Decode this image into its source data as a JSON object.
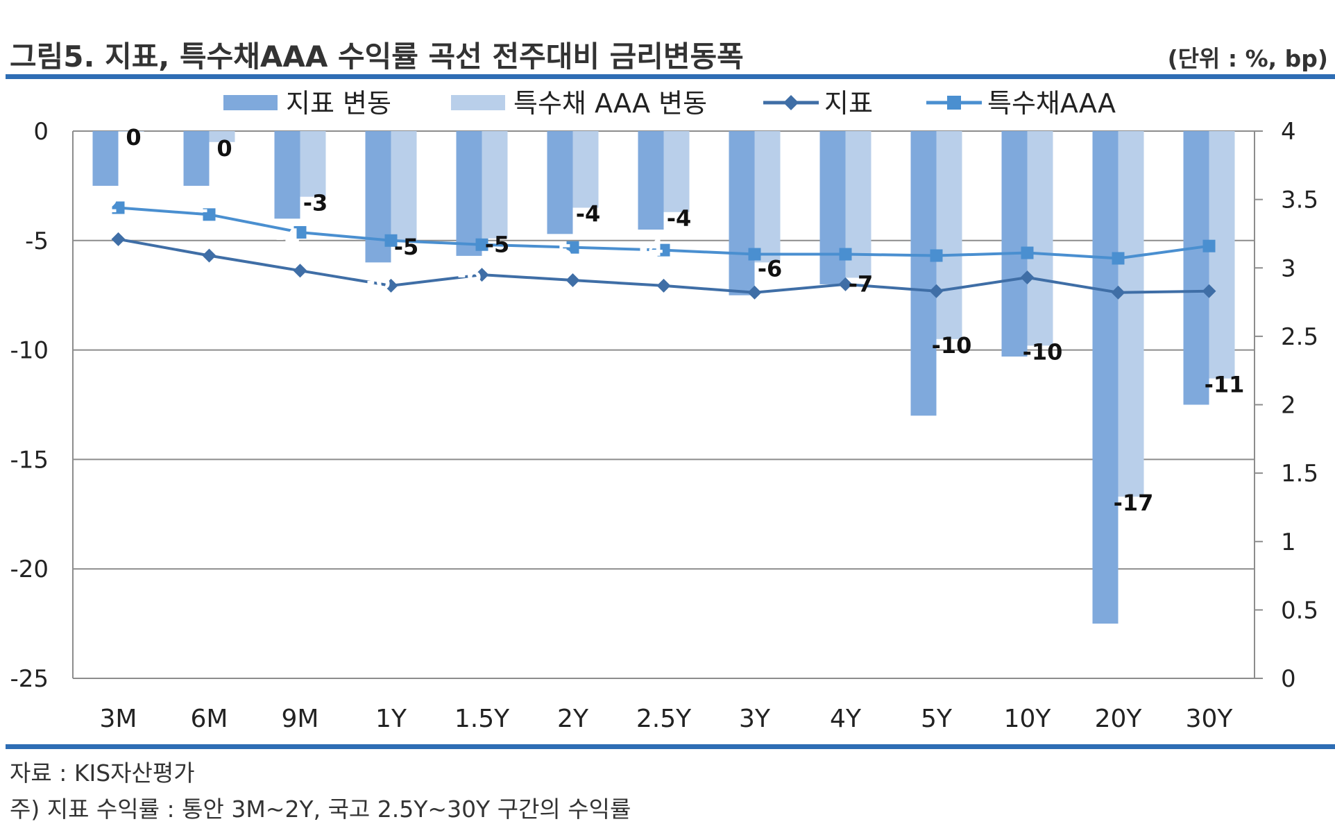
{
  "header": {
    "title": "그림5. 지표, 특수채AAA 수익률 곡선 전주대비 금리변동폭",
    "unit": "(단위 : %, bp)"
  },
  "footer": {
    "source": "자료 : KIS자산평가",
    "note": "주) 지표 수익률 : 통안 3M~2Y, 국고 2.5Y~30Y 구간의 수익률"
  },
  "colors": {
    "rule": "#2e6db4",
    "bar_index": "#7fa9dc",
    "bar_aaa": "#b9cfea",
    "line_index": "#3f6ea6",
    "line_aaa": "#4a8fd0"
  },
  "chart_data": {
    "type": "bar",
    "categories": [
      "3M",
      "6M",
      "9M",
      "1Y",
      "1.5Y",
      "2Y",
      "2.5Y",
      "3Y",
      "4Y",
      "5Y",
      "10Y",
      "20Y",
      "30Y"
    ],
    "series": [
      {
        "name": "지표 변동",
        "type": "bar",
        "axis": "left",
        "values": [
          -2.5,
          -2.5,
          -4,
          -6,
          -5.7,
          -4.7,
          -4.5,
          -7.5,
          -7,
          -13,
          -10.3,
          -22.5,
          -12.5
        ],
        "labels": [
          "-2",
          "-2",
          "-4",
          "-6",
          "-6",
          "-5",
          "-4",
          "-8",
          "-7",
          "-13",
          "-10",
          "-23",
          "-13"
        ]
      },
      {
        "name": "특수채 AAA 변동",
        "type": "bar",
        "axis": "left",
        "values": [
          0,
          -0.5,
          -3,
          -5,
          -4.9,
          -3.5,
          -3.7,
          -6,
          -6.7,
          -9.5,
          -9.8,
          -16.7,
          -11.3
        ],
        "labels": [
          "0",
          "0",
          "-3",
          "-5",
          "-5",
          "-4",
          "-4",
          "-6",
          "-7",
          "-10",
          "-10",
          "-17",
          "-11"
        ]
      },
      {
        "name": "지표",
        "type": "line",
        "axis": "right",
        "marker": "diamond",
        "values": [
          3.21,
          3.09,
          2.98,
          2.87,
          2.95,
          2.91,
          2.87,
          2.82,
          2.88,
          2.83,
          2.93,
          2.82,
          2.83
        ]
      },
      {
        "name": "특수채AAA",
        "type": "line",
        "axis": "right",
        "marker": "square",
        "values": [
          3.44,
          3.39,
          3.26,
          3.2,
          3.17,
          3.15,
          3.13,
          3.1,
          3.1,
          3.09,
          3.11,
          3.07,
          3.16
        ]
      }
    ],
    "ylim_left": [
      -25,
      0
    ],
    "yticks_left": [
      "0",
      "-5",
      "-10",
      "-15",
      "-20",
      "-25"
    ],
    "ylim_right": [
      0,
      4
    ],
    "yticks_right": [
      "4",
      "3.5",
      "3",
      "2.5",
      "2",
      "1.5",
      "1",
      "0.5",
      "0"
    ],
    "legend_position": "top",
    "grid": true
  }
}
